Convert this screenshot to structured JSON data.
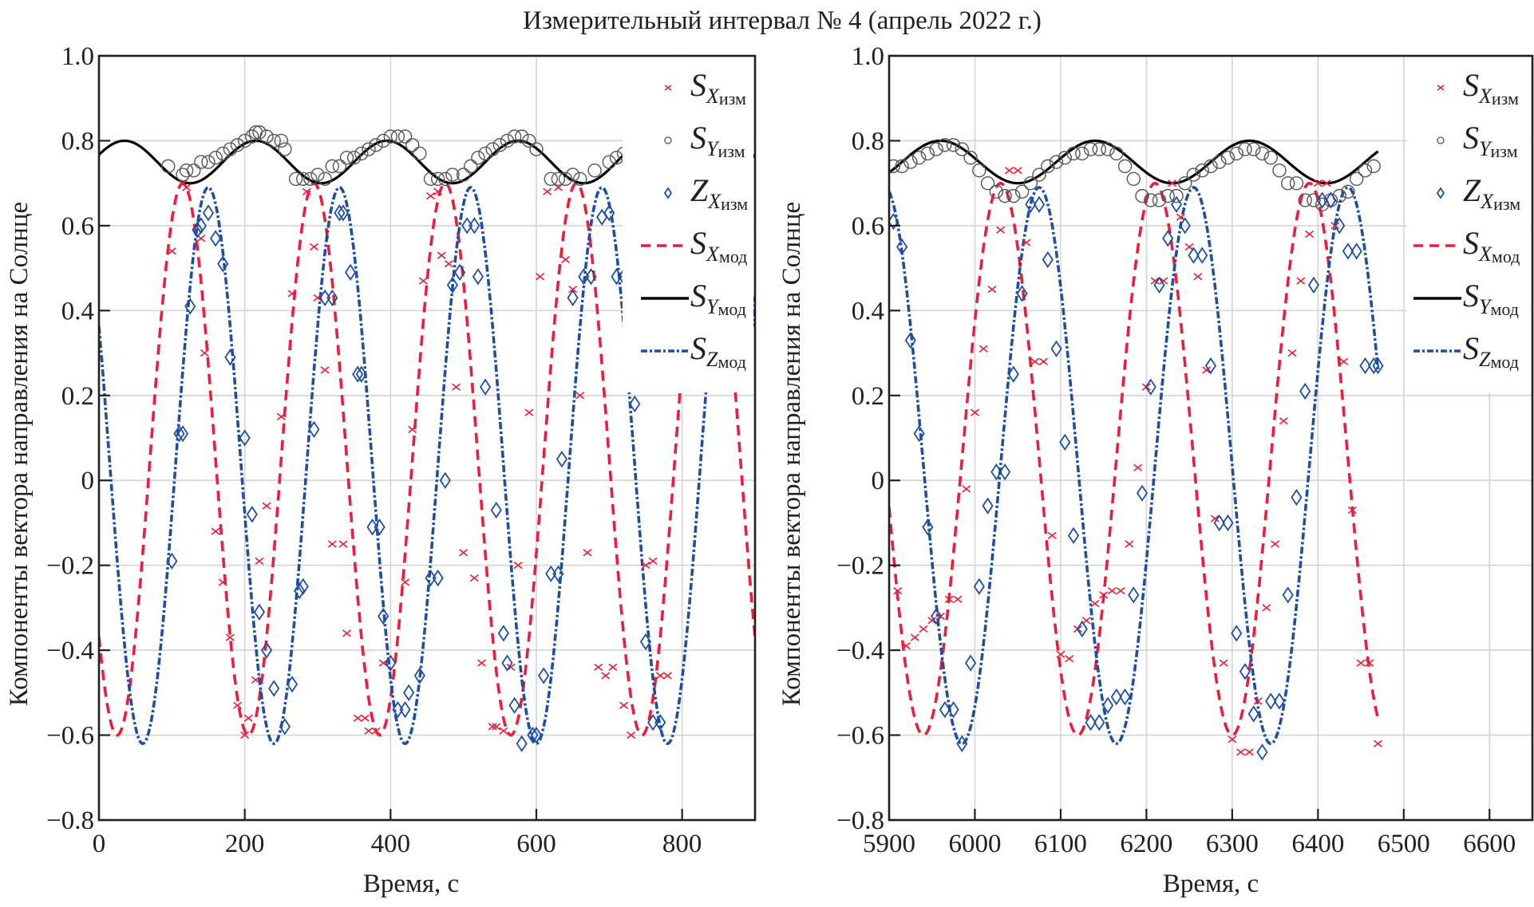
{
  "title": "Измерительный интервал № 4 (апрель 2022 г.)",
  "chart_data": [
    {
      "type": "line",
      "panel": "left",
      "title": "Измерительный интервал № 4 (апрель 2022 г.)",
      "xlabel": "Время, с",
      "ylabel": "Компоненты вектора направления на Солнце",
      "xlim": [
        0,
        900
      ],
      "ylim": [
        -0.8,
        1.0
      ],
      "xticks": [
        0,
        200,
        400,
        600,
        800
      ],
      "xtick_labels": [
        "0",
        "200",
        "400",
        "600",
        "800"
      ],
      "yticks": [
        1.0,
        0.8,
        0.6,
        0.4,
        0.2,
        0,
        -0.2,
        -0.4,
        -0.6,
        -0.8
      ],
      "ytick_labels": [
        "1.0",
        "0.8",
        "0.6",
        "0.4",
        "0.2",
        "0",
        "−0.2",
        "−0.4",
        "−0.6",
        "−0.8"
      ],
      "grid": true,
      "legend_position": "top-right",
      "model_range": [
        0,
        900
      ],
      "measured_range": [
        100,
        790
      ],
      "series": [
        {
          "name": "S_X изм",
          "label_main": "S",
          "label_sub": "X",
          "label_sub2": "изм",
          "kind": "marker-x",
          "color": "#ee1c3a",
          "x": [
            100,
            115,
            120,
            140,
            145,
            160,
            170,
            180,
            190,
            200,
            205,
            215,
            220,
            230,
            250,
            265,
            285,
            295,
            300,
            310,
            320,
            335,
            340,
            355,
            365,
            370,
            380,
            390,
            420,
            430,
            445,
            455,
            465,
            470,
            480,
            490,
            500,
            515,
            525,
            540,
            545,
            555,
            565,
            575,
            590,
            605,
            615,
            630,
            640,
            650,
            660,
            670,
            685,
            695,
            705,
            720,
            730,
            750,
            760,
            770,
            780
          ],
          "y": [
            0.54,
            0.7,
            0.69,
            0.57,
            0.3,
            -0.12,
            -0.24,
            -0.37,
            -0.53,
            -0.6,
            -0.56,
            -0.47,
            -0.19,
            -0.06,
            0.15,
            0.44,
            0.68,
            0.55,
            0.43,
            0.26,
            -0.15,
            -0.15,
            -0.36,
            -0.56,
            -0.56,
            -0.59,
            -0.59,
            -0.43,
            -0.24,
            0.12,
            0.47,
            0.67,
            0.68,
            0.53,
            0.51,
            0.22,
            -0.17,
            -0.23,
            -0.43,
            -0.58,
            -0.58,
            -0.59,
            -0.44,
            -0.2,
            0.16,
            0.48,
            0.68,
            0.69,
            0.52,
            0.45,
            0.2,
            -0.17,
            -0.44,
            -0.46,
            -0.44,
            -0.53,
            -0.6,
            -0.2,
            -0.19,
            -0.46,
            -0.46
          ]
        },
        {
          "name": "S_Y изм",
          "label_main": "S",
          "label_sub": "Y",
          "label_sub2": "изм",
          "kind": "marker-circle",
          "color": "#555555",
          "x": [
            95,
            115,
            120,
            130,
            140,
            150,
            160,
            170,
            180,
            190,
            200,
            210,
            215,
            220,
            230,
            240,
            250,
            255,
            270,
            280,
            290,
            300,
            310,
            320,
            330,
            340,
            350,
            360,
            370,
            380,
            390,
            400,
            410,
            420,
            430,
            440,
            455,
            465,
            475,
            485,
            500,
            510,
            520,
            530,
            540,
            550,
            560,
            570,
            580,
            590,
            600,
            620,
            630,
            640,
            650,
            660,
            680,
            700,
            710,
            720,
            730
          ],
          "y": [
            0.74,
            0.72,
            0.73,
            0.73,
            0.75,
            0.75,
            0.76,
            0.77,
            0.78,
            0.79,
            0.8,
            0.81,
            0.82,
            0.82,
            0.81,
            0.8,
            0.8,
            0.78,
            0.71,
            0.71,
            0.71,
            0.72,
            0.71,
            0.74,
            0.74,
            0.76,
            0.76,
            0.77,
            0.78,
            0.79,
            0.8,
            0.81,
            0.81,
            0.81,
            0.79,
            0.77,
            0.71,
            0.71,
            0.71,
            0.72,
            0.72,
            0.74,
            0.76,
            0.77,
            0.78,
            0.79,
            0.8,
            0.81,
            0.81,
            0.8,
            0.78,
            0.71,
            0.71,
            0.71,
            0.72,
            0.71,
            0.73,
            0.75,
            0.76,
            0.77,
            0.78
          ]
        },
        {
          "name": "Z_X изм",
          "label_main": "Z",
          "label_sub": "X",
          "label_sub2": "изм",
          "kind": "marker-diamond",
          "color": "#1d4ea3",
          "x": [
            100,
            110,
            115,
            125,
            135,
            140,
            150,
            160,
            170,
            180,
            200,
            210,
            220,
            230,
            240,
            255,
            265,
            275,
            280,
            295,
            310,
            320,
            330,
            335,
            345,
            355,
            360,
            375,
            385,
            390,
            400,
            410,
            420,
            425,
            440,
            455,
            465,
            475,
            485,
            495,
            505,
            515,
            520,
            530,
            545,
            555,
            560,
            570,
            580,
            595,
            600,
            610,
            620,
            630,
            635,
            650,
            665,
            675,
            690,
            700,
            710,
            720,
            735,
            750,
            760,
            770
          ],
          "y": [
            -0.19,
            0.11,
            0.11,
            0.41,
            0.59,
            0.6,
            0.63,
            0.57,
            0.51,
            0.29,
            0.1,
            -0.08,
            -0.31,
            -0.4,
            -0.49,
            -0.58,
            -0.48,
            -0.26,
            -0.25,
            0.12,
            0.43,
            0.43,
            0.63,
            0.63,
            0.49,
            0.25,
            0.25,
            -0.11,
            -0.11,
            -0.32,
            -0.43,
            -0.54,
            -0.54,
            -0.5,
            -0.46,
            -0.23,
            -0.23,
            0.0,
            0.46,
            0.49,
            0.6,
            0.6,
            0.48,
            0.22,
            -0.07,
            -0.36,
            -0.43,
            -0.53,
            -0.62,
            -0.6,
            -0.6,
            -0.46,
            -0.22,
            -0.22,
            0.05,
            0.43,
            0.48,
            0.48,
            0.62,
            0.63,
            0.48,
            0.48,
            0.18,
            -0.38,
            -0.57,
            -0.57
          ]
        },
        {
          "name": "S_X мод",
          "label_main": "S",
          "label_sub": "X",
          "label_sub2": "мод",
          "kind": "line-dashed",
          "color": "#ee1c3a",
          "model": {
            "offset": 0.05,
            "amplitude": 0.65,
            "period": 180,
            "phase_peak": 115
          }
        },
        {
          "name": "S_Y мод",
          "label_main": "S",
          "label_sub": "Y",
          "label_sub2": "мод",
          "kind": "line-solid",
          "color": "#000000",
          "model": {
            "offset": 0.75,
            "amplitude": 0.05,
            "period": 180,
            "phase_peak": 35
          }
        },
        {
          "name": "S_Z мод",
          "label_main": "S",
          "label_sub": "Z",
          "label_sub2": "мод",
          "kind": "line-dashdot",
          "color": "#1d4ea3",
          "model": {
            "offset": 0.035,
            "amplitude": 0.655,
            "period": 180,
            "phase_peak": 150
          }
        }
      ]
    },
    {
      "type": "line",
      "panel": "right",
      "xlabel": "Время, с",
      "ylabel": "Компоненты вектора направления на Солнце",
      "xlim": [
        5900,
        6650
      ],
      "ylim": [
        -0.8,
        1.0
      ],
      "xticks": [
        5900,
        6000,
        6100,
        6200,
        6300,
        6400,
        6500,
        6600
      ],
      "xtick_labels": [
        "5900",
        "6000",
        "6100",
        "6200",
        "6300",
        "6400",
        "6500",
        "6600"
      ],
      "yticks": [
        1.0,
        0.8,
        0.6,
        0.4,
        0.2,
        0,
        -0.2,
        -0.4,
        -0.6,
        -0.8
      ],
      "ytick_labels": [
        "1.0",
        "0.8",
        "0.6",
        "0.4",
        "0.2",
        "0",
        "−0.2",
        "−0.4",
        "−0.6",
        "−0.8"
      ],
      "grid": true,
      "legend_position": "top-right",
      "model_range": [
        5900,
        6470
      ],
      "series": [
        {
          "name": "S_X изм",
          "label_main": "S",
          "label_sub": "X",
          "label_sub2": "изм",
          "kind": "marker-x",
          "color": "#ee1c3a",
          "x": [
            5910,
            5920,
            5930,
            5940,
            5950,
            5960,
            5970,
            5980,
            5990,
            6000,
            6010,
            6020,
            6030,
            6040,
            6050,
            6060,
            6070,
            6080,
            6090,
            6100,
            6110,
            6120,
            6130,
            6140,
            6150,
            6160,
            6170,
            6180,
            6190,
            6200,
            6210,
            6220,
            6230,
            6240,
            6250,
            6260,
            6270,
            6280,
            6290,
            6300,
            6310,
            6320,
            6330,
            6340,
            6350,
            6360,
            6370,
            6380,
            6390,
            6400,
            6410,
            6420,
            6430,
            6440,
            6450,
            6460,
            6470
          ],
          "y": [
            -0.26,
            -0.39,
            -0.37,
            -0.35,
            -0.33,
            -0.32,
            -0.28,
            -0.28,
            -0.02,
            0.16,
            0.31,
            0.45,
            0.59,
            0.73,
            0.73,
            0.56,
            0.28,
            0.28,
            -0.13,
            -0.41,
            -0.42,
            -0.35,
            -0.33,
            -0.29,
            -0.27,
            -0.26,
            -0.26,
            -0.15,
            0.03,
            0.22,
            0.47,
            0.47,
            0.7,
            0.62,
            0.55,
            0.48,
            0.26,
            -0.09,
            -0.43,
            -0.61,
            -0.64,
            -0.64,
            -0.52,
            -0.3,
            -0.15,
            0.14,
            0.3,
            0.47,
            0.58,
            0.7,
            0.7,
            0.6,
            0.28,
            -0.07,
            -0.43,
            -0.43,
            -0.62
          ]
        },
        {
          "name": "S_Y изм",
          "label_main": "S",
          "label_sub": "Y",
          "label_sub2": "изм",
          "kind": "marker-circle",
          "color": "#555555",
          "x": [
            5905,
            5915,
            5925,
            5935,
            5945,
            5955,
            5965,
            5975,
            5985,
            5995,
            6005,
            6015,
            6025,
            6035,
            6045,
            6055,
            6065,
            6075,
            6085,
            6095,
            6105,
            6115,
            6125,
            6135,
            6145,
            6155,
            6165,
            6175,
            6185,
            6195,
            6205,
            6215,
            6225,
            6235,
            6245,
            6255,
            6265,
            6275,
            6285,
            6295,
            6305,
            6315,
            6325,
            6335,
            6345,
            6355,
            6365,
            6375,
            6385,
            6395,
            6405,
            6415,
            6425,
            6435,
            6445,
            6455,
            6465
          ],
          "y": [
            0.74,
            0.74,
            0.75,
            0.76,
            0.77,
            0.78,
            0.79,
            0.79,
            0.78,
            0.76,
            0.73,
            0.7,
            0.68,
            0.67,
            0.67,
            0.68,
            0.7,
            0.72,
            0.74,
            0.75,
            0.76,
            0.77,
            0.77,
            0.78,
            0.78,
            0.78,
            0.77,
            0.74,
            0.71,
            0.67,
            0.66,
            0.66,
            0.67,
            0.67,
            0.7,
            0.72,
            0.73,
            0.74,
            0.75,
            0.76,
            0.77,
            0.78,
            0.78,
            0.77,
            0.76,
            0.73,
            0.7,
            0.7,
            0.66,
            0.66,
            0.65,
            0.66,
            0.67,
            0.68,
            0.71,
            0.73,
            0.74
          ]
        },
        {
          "name": "Z_X изм",
          "label_main": "Z",
          "label_sub": "X",
          "label_sub2": "изм",
          "kind": "marker-diamond",
          "color": "#1d4ea3",
          "x": [
            5905,
            5915,
            5925,
            5935,
            5945,
            5955,
            5965,
            5975,
            5985,
            5995,
            6005,
            6015,
            6025,
            6035,
            6045,
            6055,
            6065,
            6075,
            6085,
            6095,
            6105,
            6115,
            6125,
            6135,
            6145,
            6155,
            6165,
            6175,
            6185,
            6195,
            6205,
            6215,
            6225,
            6235,
            6245,
            6255,
            6265,
            6275,
            6285,
            6295,
            6305,
            6315,
            6325,
            6335,
            6345,
            6355,
            6365,
            6375,
            6385,
            6395,
            6405,
            6415,
            6425,
            6435,
            6445,
            6455,
            6465,
            6470
          ],
          "y": [
            0.61,
            0.55,
            0.33,
            0.11,
            -0.11,
            -0.32,
            -0.54,
            -0.54,
            -0.62,
            -0.43,
            -0.25,
            -0.06,
            0.02,
            0.02,
            0.25,
            0.44,
            0.65,
            0.65,
            0.52,
            0.31,
            0.09,
            -0.13,
            -0.35,
            -0.57,
            -0.57,
            -0.53,
            -0.51,
            -0.51,
            -0.27,
            -0.03,
            0.22,
            0.46,
            0.57,
            0.65,
            0.6,
            0.53,
            0.53,
            0.27,
            -0.1,
            -0.1,
            -0.36,
            -0.45,
            -0.55,
            -0.64,
            -0.52,
            -0.52,
            -0.27,
            -0.04,
            0.21,
            0.46,
            0.66,
            0.66,
            0.6,
            0.54,
            0.54,
            0.27,
            0.27,
            0.27
          ]
        },
        {
          "name": "S_X мод",
          "label_main": "S",
          "label_sub": "X",
          "label_sub2": "мод",
          "kind": "line-dashed",
          "color": "#ee1c3a",
          "model": {
            "offset": 0.05,
            "amplitude": 0.65,
            "period": 180,
            "phase_peak": 6030
          }
        },
        {
          "name": "S_Y мод",
          "label_main": "S",
          "label_sub": "Y",
          "label_sub2": "мод",
          "kind": "line-solid",
          "color": "#000000",
          "model": {
            "offset": 0.75,
            "amplitude": 0.05,
            "period": 180,
            "phase_peak": 5960
          }
        },
        {
          "name": "S_Z мод",
          "label_main": "S",
          "label_sub": "Z",
          "label_sub2": "мод",
          "kind": "line-dashdot",
          "color": "#1d4ea3",
          "model": {
            "offset": 0.035,
            "amplitude": 0.655,
            "period": 180,
            "phase_peak": 6075
          }
        }
      ]
    }
  ]
}
